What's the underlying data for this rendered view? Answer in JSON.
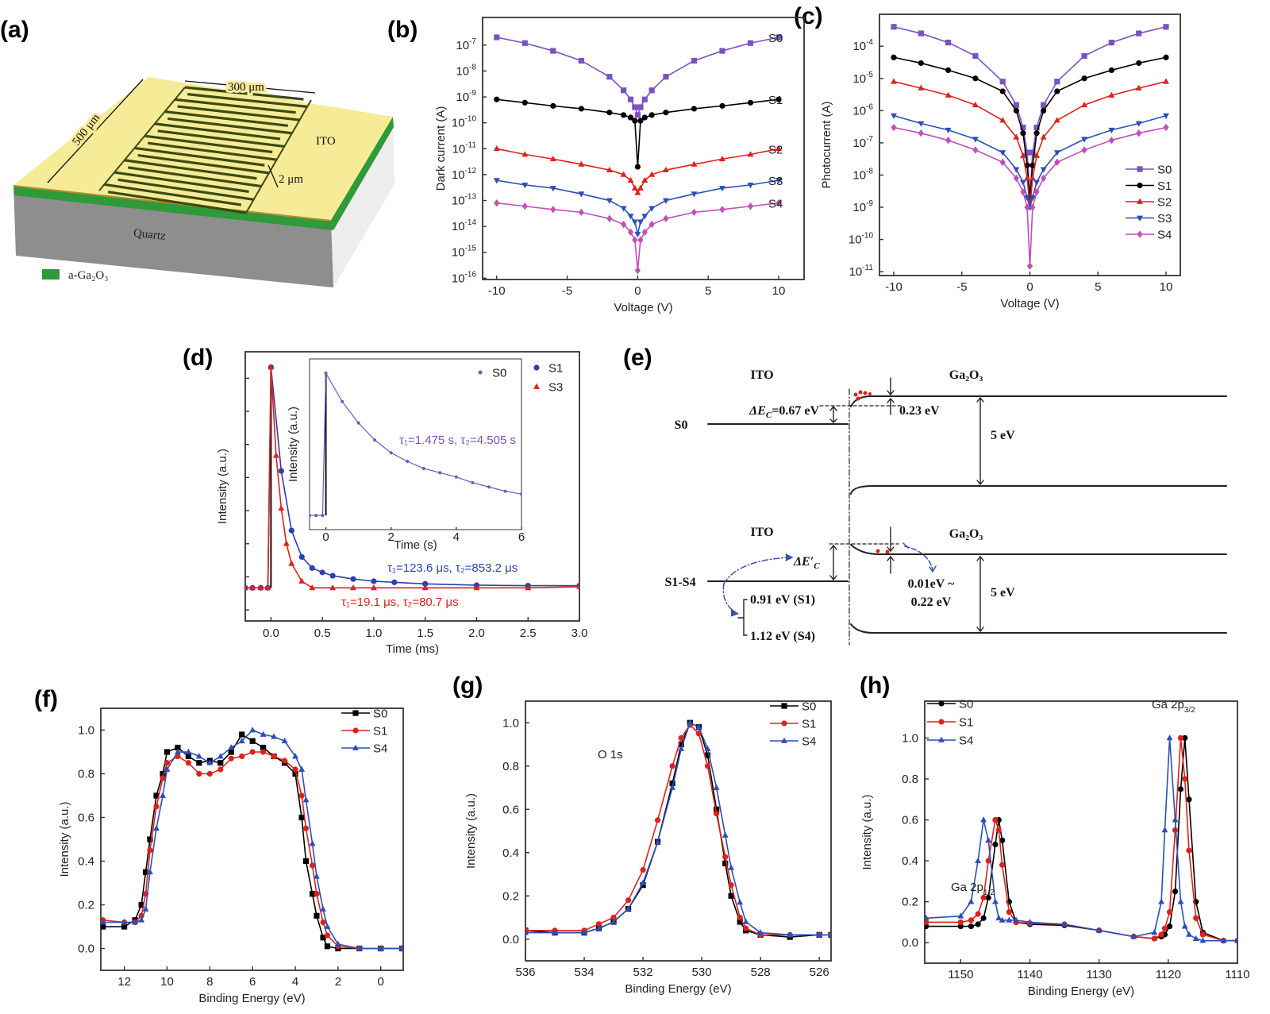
{
  "panel_labels": {
    "a": "(a)",
    "b": "(b)",
    "c": "(c)",
    "d": "(d)",
    "e": "(e)",
    "f": "(f)",
    "g": "(g)",
    "h": "(h)"
  },
  "panel_a": {
    "width_label": "300 μm",
    "length_label": "500 μm",
    "gap_label": "2 μm",
    "electrode_label": "ITO",
    "substrate_label": "Quartz",
    "legend_label": "a-Ga₂O₃",
    "colors": {
      "ito": "#f6eb97",
      "ga2o3": "#2e9a3a",
      "quartz": "#8e8e8e"
    }
  },
  "panel_e": {
    "top": {
      "left_material": "ITO",
      "right_material": "Ga₂O₃",
      "sample": "S0",
      "offset_prefix": "ΔE",
      "offset_sub": "C",
      "offset_value": "=0.67 eV",
      "barrier": "0.23 eV",
      "gap": "5 eV"
    },
    "bottom": {
      "left_material": "ITO",
      "right_material": "Ga₂O₃",
      "sample": "S1-S4",
      "offset_prefix": "ΔE′",
      "offset_sub": "C",
      "range_s1": "0.91 eV (S1)",
      "range_s4": "1.12 eV (S4)",
      "barrier_line1": "0.01eV ~",
      "barrier_line2": "0.22 eV",
      "gap": "5 eV"
    }
  },
  "chart_data": [
    {
      "panel": "b",
      "type": "scatter-line",
      "yscale": "log",
      "xlabel": "Voltage (V)",
      "ylabel": "Dark current (A)",
      "xlim": [
        -11,
        11.8
      ],
      "ylim": [
        8.9e-17,
        1.17e-06
      ],
      "xticks": [
        "-10",
        "-5",
        "0",
        "5",
        "10"
      ],
      "ytick_base": "10",
      "yticks_exp": [
        "-16",
        "-15",
        "-14",
        "-13",
        "-12",
        "-11",
        "-10",
        "-9",
        "-8",
        "-7"
      ],
      "legend": "direct-labels-right",
      "x": [
        -10,
        -8,
        -6,
        -4,
        -2,
        -1,
        -0.5,
        -0.2,
        0,
        0.2,
        0.5,
        1,
        2,
        4,
        6,
        8,
        10
      ],
      "series": [
        {
          "name": "S0",
          "color": "#7a52c0",
          "marker": "square",
          "values": [
            2e-07,
            1.2e-07,
            6e-08,
            2.5e-08,
            6e-09,
            1.8e-09,
            8e-10,
            4e-10,
            2e-10,
            4e-10,
            8e-10,
            1.8e-09,
            6e-09,
            2.5e-08,
            6e-08,
            1.2e-07,
            2e-07
          ]
        },
        {
          "name": "S1",
          "color": "#000000",
          "marker": "circle",
          "values": [
            8e-10,
            6e-10,
            4.5e-10,
            3.5e-10,
            2.5e-10,
            2e-10,
            1.6e-10,
            1.2e-10,
            2e-12,
            1.2e-10,
            1.6e-10,
            2e-10,
            2.5e-10,
            3.5e-10,
            4.5e-10,
            6e-10,
            8e-10
          ]
        },
        {
          "name": "S2",
          "color": "#e0201c",
          "marker": "triangle-up",
          "values": [
            1e-11,
            6e-12,
            4e-12,
            2.5e-12,
            1.5e-12,
            1e-12,
            6e-13,
            3e-13,
            2e-13,
            3e-13,
            6e-13,
            1e-12,
            1.5e-12,
            2.5e-12,
            4e-12,
            6e-12,
            1e-11
          ]
        },
        {
          "name": "S3",
          "color": "#2c4fb4",
          "marker": "triangle-down",
          "values": [
            6e-13,
            4e-13,
            3e-13,
            1.8e-13,
            1e-13,
            5e-14,
            2.5e-14,
            1.5e-14,
            5e-15,
            1.5e-14,
            2.5e-14,
            5e-14,
            1e-13,
            1.8e-13,
            3e-13,
            4e-13,
            6e-13
          ]
        },
        {
          "name": "S4",
          "color": "#c04fb8",
          "marker": "diamond",
          "values": [
            8e-14,
            6e-14,
            4.5e-14,
            3.5e-14,
            2e-14,
            1.2e-14,
            6e-15,
            3e-15,
            2e-16,
            3e-15,
            6e-15,
            1.2e-14,
            2e-14,
            3.5e-14,
            4.5e-14,
            6e-14,
            8e-14
          ]
        }
      ]
    },
    {
      "panel": "c",
      "type": "scatter-line",
      "yscale": "log",
      "xlabel": "Voltage (V)",
      "ylabel": "Photocurrent (A)",
      "xlim": [
        -11.05,
        11.05
      ],
      "ylim": [
        7.6e-12,
        0.00098
      ],
      "xticks": [
        "-10",
        "-5",
        "0",
        "5",
        "10"
      ],
      "ytick_base": "10",
      "yticks_exp": [
        "-11",
        "-10",
        "-9",
        "-8",
        "-7",
        "-6",
        "-5",
        "-4"
      ],
      "legend": "bottom-right",
      "x": [
        -10,
        -8,
        -6,
        -4,
        -2,
        -1,
        -0.5,
        -0.2,
        0,
        0.2,
        0.5,
        1,
        2,
        4,
        6,
        8,
        10
      ],
      "series": [
        {
          "name": "S0",
          "color": "#7a52c0",
          "marker": "square",
          "values": [
            0.0004,
            0.00025,
            0.00013,
            5e-05,
            8e-06,
            1.5e-06,
            3e-07,
            5e-08,
            2e-09,
            5e-08,
            3e-07,
            1.5e-06,
            8e-06,
            5e-05,
            0.00013,
            0.00025,
            0.0004
          ]
        },
        {
          "name": "S1",
          "color": "#000000",
          "marker": "circle",
          "values": [
            4.5e-05,
            3e-05,
            1.8e-05,
            1e-05,
            4e-06,
            1e-06,
            2e-07,
            2e-08,
            2e-09,
            2e-08,
            2e-07,
            1e-06,
            4e-06,
            1e-05,
            1.8e-05,
            3e-05,
            4.5e-05
          ]
        },
        {
          "name": "S2",
          "color": "#e0201c",
          "marker": "triangle-up",
          "values": [
            8e-06,
            5e-06,
            3e-06,
            1.5e-06,
            5e-07,
            1.5e-07,
            4e-08,
            8e-09,
            1e-09,
            8e-09,
            4e-08,
            1.5e-07,
            5e-07,
            1.5e-06,
            3e-06,
            5e-06,
            8e-06
          ]
        },
        {
          "name": "S3",
          "color": "#2c4fb4",
          "marker": "triangle-down",
          "values": [
            7e-07,
            4e-07,
            2.5e-07,
            1.3e-07,
            5e-08,
            1.5e-08,
            6e-09,
            2e-09,
            1e-09,
            2e-09,
            6e-09,
            1.5e-08,
            5e-08,
            1.3e-07,
            2.5e-07,
            4e-07,
            7e-07
          ]
        },
        {
          "name": "S4",
          "color": "#c04fb8",
          "marker": "diamond",
          "values": [
            3e-07,
            2e-07,
            1.2e-07,
            6e-08,
            2.5e-08,
            8e-09,
            3e-09,
            1e-09,
            1.5e-11,
            1e-09,
            3e-09,
            8e-09,
            2.5e-08,
            6e-08,
            1.2e-07,
            2e-07,
            3e-07
          ]
        }
      ]
    },
    {
      "panel": "d",
      "type": "scatter-line",
      "yscale": "linear",
      "xlabel": "Time (ms)",
      "ylabel": "Intensity (a.u.)",
      "xlim": [
        -0.25,
        3.0
      ],
      "ylim": [
        -0.15,
        1.07
      ],
      "xticks": [
        "0.0",
        "0.5",
        "1.0",
        "1.5",
        "2.0",
        "2.5",
        "3.0"
      ],
      "yticks_unlabeled": [
        -0.1,
        0.05,
        0.2,
        0.35,
        0.5,
        0.65,
        0.8,
        0.95
      ],
      "legend": "top-right",
      "series": [
        {
          "name": "S1",
          "color": "#2c3fae",
          "marker": "circle",
          "x": [
            -0.25,
            -0.18,
            -0.1,
            -0.03,
            0,
            0.1,
            0.2,
            0.3,
            0.4,
            0.5,
            0.6,
            0.8,
            1.0,
            1.2,
            1.5,
            2.0,
            2.5,
            3.0
          ],
          "values": [
            0,
            0,
            0,
            0,
            1,
            0.53,
            0.26,
            0.14,
            0.09,
            0.07,
            0.055,
            0.04,
            0.03,
            0.025,
            0.018,
            0.012,
            0.01,
            0.01
          ]
        },
        {
          "name": "S3",
          "color": "#e0201c",
          "marker": "triangle-up",
          "x": [
            -0.25,
            -0.18,
            -0.1,
            -0.03,
            0,
            0.05,
            0.1,
            0.15,
            0.2,
            0.3,
            0.4,
            0.6,
            0.8,
            1.0,
            1.5,
            2.0,
            2.5,
            3.0
          ],
          "values": [
            0,
            0,
            0,
            0,
            1,
            0.6,
            0.36,
            0.2,
            0.11,
            0.03,
            0,
            0,
            0,
            0,
            0,
            0,
            0,
            0.005
          ]
        }
      ],
      "annotations": [
        {
          "text": "τ₁=123.6 μs, τ₂=853.2 μs",
          "color": "#2c3fae"
        },
        {
          "text": "τ₁=19.1 μs, τ₂=80.7 μs",
          "color": "#e0201c"
        }
      ]
    },
    {
      "panel": "d-inset",
      "type": "scatter-line",
      "yscale": "linear",
      "xlabel": "Time (s)",
      "ylabel": "Intensity (a.u.)",
      "xlim": [
        -0.5,
        6
      ],
      "ylim": [
        -0.1,
        1.1
      ],
      "xticks": [
        "0",
        "2",
        "4",
        "6"
      ],
      "legend": "top-right",
      "series": [
        {
          "name": "S0",
          "color": "#7a52c0",
          "marker": "circle",
          "x": [
            -0.5,
            -0.3,
            -0.1,
            0,
            0.5,
            1,
            1.5,
            2,
            2.5,
            3,
            3.5,
            4,
            4.5,
            5,
            5.5,
            6
          ],
          "values": [
            0,
            0,
            0,
            1,
            0.8,
            0.65,
            0.53,
            0.44,
            0.38,
            0.33,
            0.3,
            0.27,
            0.23,
            0.2,
            0.17,
            0.15
          ]
        }
      ],
      "annotations": [
        {
          "text": "τ₁=1.475 s, τ₂=4.505 s",
          "color": "#7a52c0"
        }
      ]
    },
    {
      "panel": "f",
      "type": "scatter-line",
      "yscale": "linear",
      "xlabel": "Binding Energy (eV)",
      "ylabel": "Intensity (a.u.)",
      "xlim": [
        13.1,
        -1.05
      ],
      "ylim": [
        -0.1,
        1.1
      ],
      "xticks": [
        "12",
        "10",
        "8",
        "6",
        "4",
        "2",
        "0"
      ],
      "yticks": [
        "0.0",
        "0.2",
        "0.4",
        "0.6",
        "0.8",
        "1.0"
      ],
      "legend": "top-right",
      "x": [
        13,
        12,
        11.5,
        11.2,
        11,
        10.8,
        10.5,
        10.2,
        10,
        9.5,
        9,
        8.5,
        8,
        7.5,
        7,
        6.5,
        6,
        5.5,
        5,
        4.5,
        4,
        3.7,
        3.5,
        3.2,
        3,
        2.7,
        2.5,
        2,
        1,
        0,
        -1
      ],
      "series": [
        {
          "name": "S0",
          "color": "#000000",
          "marker": "square",
          "values": [
            0.1,
            0.1,
            0.13,
            0.2,
            0.35,
            0.5,
            0.7,
            0.8,
            0.9,
            0.92,
            0.88,
            0.85,
            0.86,
            0.85,
            0.9,
            0.98,
            0.95,
            0.92,
            0.88,
            0.85,
            0.8,
            0.6,
            0.4,
            0.25,
            0.15,
            0.05,
            0.01,
            0,
            0,
            0,
            0
          ]
        },
        {
          "name": "S1",
          "color": "#e0201c",
          "marker": "circle",
          "values": [
            0.13,
            0.12,
            0.12,
            0.15,
            0.25,
            0.45,
            0.65,
            0.78,
            0.85,
            0.88,
            0.85,
            0.8,
            0.8,
            0.82,
            0.87,
            0.88,
            0.9,
            0.9,
            0.88,
            0.86,
            0.82,
            0.7,
            0.55,
            0.38,
            0.25,
            0.12,
            0.06,
            0.01,
            0,
            0,
            0
          ]
        },
        {
          "name": "S4",
          "color": "#2c4fb4",
          "marker": "triangle-up",
          "values": [
            0.12,
            0.12,
            0.12,
            0.13,
            0.18,
            0.35,
            0.55,
            0.7,
            0.82,
            0.9,
            0.9,
            0.88,
            0.85,
            0.88,
            0.92,
            0.95,
            1.0,
            0.98,
            0.97,
            0.95,
            0.88,
            0.82,
            0.68,
            0.48,
            0.33,
            0.18,
            0.1,
            0.02,
            0,
            0,
            0
          ]
        }
      ]
    },
    {
      "panel": "g",
      "type": "scatter-line",
      "yscale": "linear",
      "xlabel": "Binding Energy (eV)",
      "ylabel": "Intensity (a.u.)",
      "xlim": [
        536,
        525.6
      ],
      "ylim": [
        -0.1,
        1.1
      ],
      "xticks": [
        "536",
        "534",
        "532",
        "530",
        "528",
        "526"
      ],
      "yticks": [
        "0.0",
        "0.2",
        "0.4",
        "0.6",
        "0.8",
        "1.0"
      ],
      "legend": "top-right",
      "x": [
        536,
        535,
        534,
        533.5,
        533,
        532.5,
        532,
        531.5,
        531,
        530.7,
        530.4,
        530.1,
        529.8,
        529.5,
        529.2,
        529,
        528.7,
        528.5,
        528,
        527,
        526,
        525.6
      ],
      "series": [
        {
          "name": "S0",
          "color": "#000000",
          "marker": "square",
          "values": [
            0.04,
            0.03,
            0.03,
            0.05,
            0.08,
            0.14,
            0.25,
            0.45,
            0.72,
            0.9,
            1.0,
            0.98,
            0.85,
            0.6,
            0.35,
            0.2,
            0.08,
            0.04,
            0.02,
            0.01,
            0.02,
            0.02
          ]
        },
        {
          "name": "S1",
          "color": "#e0201c",
          "marker": "circle",
          "values": [
            0.04,
            0.04,
            0.04,
            0.07,
            0.1,
            0.18,
            0.32,
            0.55,
            0.8,
            0.93,
            0.99,
            0.95,
            0.8,
            0.58,
            0.38,
            0.25,
            0.1,
            0.05,
            0.02,
            0.02,
            0.02,
            0.02
          ]
        },
        {
          "name": "S4",
          "color": "#2c4fb4",
          "marker": "triangle-up",
          "values": [
            0.03,
            0.03,
            0.03,
            0.05,
            0.08,
            0.14,
            0.26,
            0.45,
            0.7,
            0.88,
            1.0,
            0.98,
            0.88,
            0.7,
            0.48,
            0.33,
            0.17,
            0.08,
            0.03,
            0.02,
            0.02,
            0.02
          ]
        }
      ],
      "annotations": [
        {
          "text": "O 1s",
          "color": "#222222"
        }
      ]
    },
    {
      "panel": "h",
      "type": "scatter-line",
      "yscale": "linear",
      "xlabel": "Binding Energy (eV)",
      "ylabel": "Intensity (a.u.)",
      "xlim": [
        1155.2,
        1110
      ],
      "ylim": [
        -0.1,
        1.18
      ],
      "xticks": [
        "1150",
        "1140",
        "1130",
        "1120",
        "1110"
      ],
      "yticks": [
        "0.0",
        "0.2",
        "0.4",
        "0.6",
        "0.8",
        "1.0"
      ],
      "legend": "top-left",
      "x": [
        1155,
        1150,
        1148.5,
        1147.5,
        1146.7,
        1146,
        1145,
        1144.5,
        1144,
        1143,
        1142,
        1140,
        1135,
        1130,
        1125,
        1122,
        1121,
        1120.5,
        1119.8,
        1119,
        1118.2,
        1117.6,
        1117,
        1116,
        1115,
        1112,
        1110
      ],
      "series": [
        {
          "name": "S0",
          "color": "#000000",
          "marker": "circle",
          "values": [
            0.08,
            0.08,
            0.08,
            0.09,
            0.12,
            0.22,
            0.48,
            0.6,
            0.5,
            0.2,
            0.1,
            0.09,
            0.085,
            0.06,
            0.03,
            0.02,
            0.03,
            0.04,
            0.08,
            0.25,
            0.75,
            1.0,
            0.7,
            0.2,
            0.05,
            0.01,
            0.01
          ]
        },
        {
          "name": "S1",
          "color": "#e0201c",
          "marker": "circle",
          "values": [
            0.1,
            0.1,
            0.11,
            0.14,
            0.22,
            0.4,
            0.6,
            0.55,
            0.38,
            0.15,
            0.1,
            0.095,
            0.09,
            0.06,
            0.03,
            0.02,
            0.04,
            0.07,
            0.15,
            0.55,
            1.0,
            0.8,
            0.45,
            0.12,
            0.04,
            0.01,
            0.01
          ]
        },
        {
          "name": "S4",
          "color": "#2c4fb4",
          "marker": "triangle-up",
          "values": [
            0.12,
            0.13,
            0.2,
            0.4,
            0.6,
            0.5,
            0.2,
            0.12,
            0.11,
            0.11,
            0.11,
            0.1,
            0.09,
            0.06,
            0.03,
            0.05,
            0.2,
            0.55,
            1.0,
            0.6,
            0.2,
            0.08,
            0.04,
            0.02,
            0.01,
            0.01,
            0.01
          ]
        }
      ],
      "annotations": [
        {
          "text": "Ga 2p",
          "sub": "1/2",
          "color": "#222222"
        },
        {
          "text": "Ga 2p",
          "sub": "3/2",
          "color": "#222222"
        }
      ]
    }
  ]
}
